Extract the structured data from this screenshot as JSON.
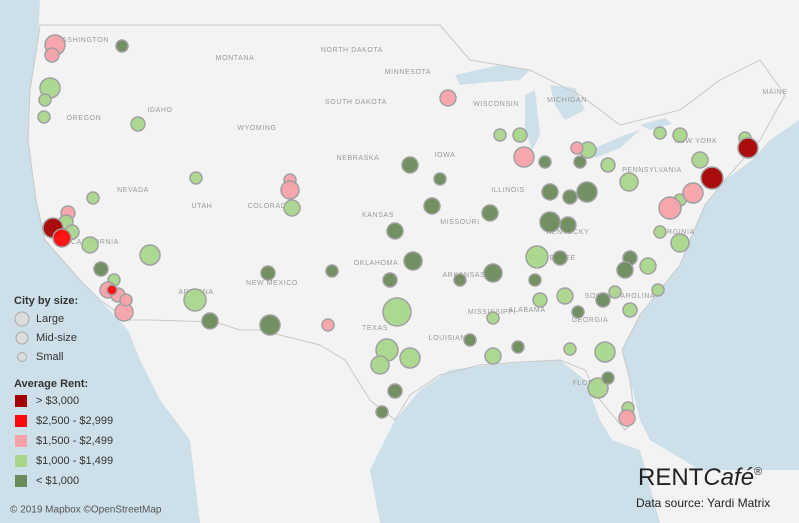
{
  "map": {
    "state_labels": [
      "WASHINGTON",
      "MONTANA",
      "NORTH DAKOTA",
      "MINNESOTA",
      "SOUTH DAKOTA",
      "WISCONSIN",
      "MICHIGAN",
      "MAINE",
      "OREGON",
      "IDAHO",
      "WYOMING",
      "NEBRASKA",
      "IOWA",
      "NEW YORK",
      "PENNSYLVANIA",
      "NEVADA",
      "UTAH",
      "COLORADO",
      "KANSAS",
      "MISSOURI",
      "ILLINOIS",
      "KENTUCKY",
      "VIRGINIA",
      "CALIFORNIA",
      "ARIZONA",
      "NEW MEXICO",
      "OKLAHOMA",
      "ARKANSAS",
      "TENNESSEE",
      "TEXAS",
      "LOUISIANA",
      "ALABAMA",
      "GEORGIA",
      "SOUTH CAROLINA",
      "FLORIDA",
      "MISSISSIPPI"
    ],
    "attribution": "© 2019 Mapbox ©OpenStreetMap"
  },
  "legend": {
    "size_title": "City by size:",
    "sizes": [
      "Large",
      "Mid-size",
      "Small"
    ],
    "rent_title": "Average Rent:",
    "rent_classes": [
      {
        "label": "> $3,000",
        "color": "#a50000"
      },
      {
        "label": "$2,500 - $2,999",
        "color": "#ff0a0a"
      },
      {
        "label": "$1,500 - $2,499",
        "color": "#f7a1aa"
      },
      {
        "label": "$1,000 - $1,499",
        "color": "#a9d68b"
      },
      {
        "label": "< $1,000",
        "color": "#6b8a5a"
      }
    ]
  },
  "branding": {
    "logo_main": "RENT",
    "logo_accent": "Café",
    "logo_mark": "®",
    "source": "Data source: Yardi Matrix"
  }
}
